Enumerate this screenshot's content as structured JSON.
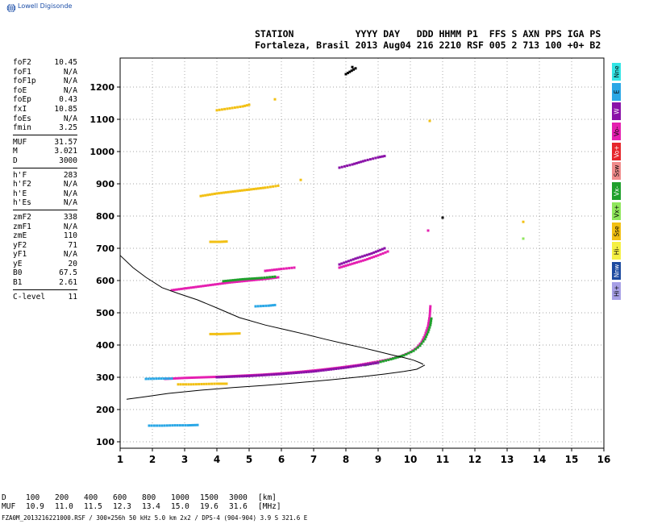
{
  "logo": {
    "text": "Lowell Digisonde"
  },
  "header": {
    "line1": "STATION           YYYY DAY   DDD HHMM P1  FFS S AXN PPS IGA PS",
    "line2": "Fortaleza, Brasil 2013 Aug04 216 2210 RSF 005 2 713 100 +0+ B2"
  },
  "params_group1": [
    {
      "name": "foF2",
      "value": "10.45"
    },
    {
      "name": "foF1",
      "value": "N/A"
    },
    {
      "name": "foF1p",
      "value": "N/A"
    },
    {
      "name": "foE",
      "value": "N/A"
    },
    {
      "name": "foEp",
      "value": "0.43"
    },
    {
      "name": "fxI",
      "value": "10.85"
    },
    {
      "name": "foEs",
      "value": "N/A"
    },
    {
      "name": "fmin",
      "value": "3.25"
    }
  ],
  "params_group2": [
    {
      "name": "MUF",
      "value": "31.57"
    },
    {
      "name": "M",
      "value": "3.021"
    },
    {
      "name": "D",
      "value": "3000"
    }
  ],
  "params_group3": [
    {
      "name": "h'F",
      "value": "283"
    },
    {
      "name": "h'F2",
      "value": "N/A"
    },
    {
      "name": "h'E",
      "value": "N/A"
    },
    {
      "name": "h'Es",
      "value": "N/A"
    }
  ],
  "params_group4": [
    {
      "name": "zmF2",
      "value": "338"
    },
    {
      "name": "zmF1",
      "value": "N/A"
    },
    {
      "name": "zmE",
      "value": "110"
    },
    {
      "name": "yF2",
      "value": "71"
    },
    {
      "name": "yF1",
      "value": "N/A"
    },
    {
      "name": "yE",
      "value": "20"
    },
    {
      "name": "B0",
      "value": "67.5"
    },
    {
      "name": "B1",
      "value": "2.61"
    }
  ],
  "params_group5": [
    {
      "name": "C-level",
      "value": "11"
    }
  ],
  "legend": [
    {
      "label": "Nne",
      "color": "#33e5e5"
    },
    {
      "label": "E",
      "color": "#2aa7e6"
    },
    {
      "label": "W",
      "color": "#8a12a8"
    },
    {
      "label": "Vo-",
      "color": "#e51fb0"
    },
    {
      "label": "Vo+",
      "color": "#e6262b"
    },
    {
      "label": "Ssw",
      "color": "#f08b8b"
    },
    {
      "label": "Vx-",
      "color": "#1fa02c"
    },
    {
      "label": "Vx+",
      "color": "#8fe65c"
    },
    {
      "label": "Sse",
      "color": "#f2c014"
    },
    {
      "label": "Hi-",
      "color": "#f5f044"
    },
    {
      "label": "Nnw",
      "color": "#1c4aa0"
    },
    {
      "label": "Hi+",
      "color": "#a7a0e6"
    }
  ],
  "muf_table": {
    "row1": [
      "D",
      "100",
      "200",
      "400",
      "600",
      "800",
      "1000",
      "1500",
      "3000",
      "[km]"
    ],
    "row2": [
      "MUF",
      "10.9",
      "11.0",
      "11.5",
      "12.3",
      "13.4",
      "15.0",
      "19.6",
      "31.6",
      "[MHz]"
    ]
  },
  "footer": "FZA0M_2013216221000.RSF / 300×256h 50 kHz 5.0 km 2x2 / DPS-4 (904-904)  3.9 S 321.6 E",
  "chart_data": {
    "type": "scatter",
    "title": "",
    "xlabel": "",
    "ylabel": "",
    "xlim": [
      1,
      16
    ],
    "ylim": [
      80,
      1290
    ],
    "x_ticks": [
      1,
      2,
      3,
      4,
      5,
      6,
      7,
      8,
      9,
      10,
      11,
      12,
      13,
      14,
      15,
      16
    ],
    "y_ticks": [
      100,
      200,
      300,
      400,
      500,
      600,
      700,
      800,
      900,
      1000,
      1100,
      1200
    ],
    "grid": true,
    "profile_line": [
      [
        10.4,
        340
      ],
      [
        10.3,
        345
      ],
      [
        10.1,
        353
      ],
      [
        9.8,
        361
      ],
      [
        9.4,
        370
      ],
      [
        9.0,
        380
      ],
      [
        8.5,
        392
      ],
      [
        8.0,
        403
      ],
      [
        7.4,
        417
      ],
      [
        6.8,
        432
      ],
      [
        6.2,
        446
      ],
      [
        5.5,
        462
      ],
      [
        4.7,
        485
      ],
      [
        4.0,
        515
      ],
      [
        3.4,
        540
      ],
      [
        2.8,
        560
      ],
      [
        2.3,
        578
      ],
      [
        1.8,
        610
      ],
      [
        1.4,
        640
      ],
      [
        1.0,
        678
      ]
    ],
    "true_height_line": [
      [
        1.2,
        232
      ],
      [
        1.8,
        240
      ],
      [
        2.5,
        250
      ],
      [
        3.5,
        260
      ],
      [
        4.5,
        268
      ],
      [
        5.5,
        275
      ],
      [
        6.5,
        283
      ],
      [
        7.5,
        292
      ],
      [
        8.5,
        302
      ],
      [
        9.2,
        310
      ],
      [
        9.8,
        318
      ],
      [
        10.2,
        325
      ],
      [
        10.45,
        338
      ]
    ],
    "echo_traces": [
      {
        "series": "O",
        "color": "#e51fb0",
        "points": [
          [
            2.4,
            295
          ],
          [
            3.0,
            298
          ],
          [
            3.6,
            300
          ],
          [
            4.2,
            302
          ],
          [
            4.8,
            305
          ],
          [
            5.4,
            308
          ],
          [
            6.0,
            312
          ],
          [
            6.6,
            317
          ],
          [
            7.2,
            323
          ],
          [
            7.8,
            330
          ],
          [
            8.4,
            338
          ],
          [
            8.9,
            347
          ],
          [
            9.3,
            355
          ],
          [
            9.7,
            365
          ],
          [
            10.0,
            378
          ],
          [
            10.2,
            392
          ],
          [
            10.35,
            410
          ],
          [
            10.45,
            430
          ],
          [
            10.55,
            460
          ],
          [
            10.6,
            490
          ],
          [
            10.62,
            520
          ]
        ]
      },
      {
        "series": "X",
        "color": "#1fa02c",
        "points": [
          [
            8.6,
            338
          ],
          [
            9.0,
            346
          ],
          [
            9.4,
            356
          ],
          [
            9.8,
            368
          ],
          [
            10.1,
            382
          ],
          [
            10.3,
            398
          ],
          [
            10.45,
            418
          ],
          [
            10.55,
            440
          ],
          [
            10.62,
            462
          ],
          [
            10.65,
            482
          ]
        ]
      },
      {
        "series": "W",
        "color": "#8a12a8",
        "points": [
          [
            4.0,
            300
          ],
          [
            5.0,
            304
          ],
          [
            6.0,
            310
          ],
          [
            7.0,
            318
          ],
          [
            8.0,
            330
          ],
          [
            9.0,
            345
          ]
        ]
      },
      {
        "series": "E",
        "color": "#2aa7e6",
        "points": [
          [
            1.8,
            295
          ],
          [
            2.2,
            296
          ],
          [
            2.6,
            296
          ]
        ]
      },
      {
        "series": "E",
        "color": "#2aa7e6",
        "points": [
          [
            1.9,
            150
          ],
          [
            2.3,
            150
          ],
          [
            2.7,
            151
          ],
          [
            3.1,
            151
          ],
          [
            3.4,
            152
          ]
        ]
      },
      {
        "series": "Sse",
        "color": "#f2c014",
        "points": [
          [
            2.8,
            278
          ],
          [
            3.2,
            278
          ],
          [
            3.6,
            279
          ],
          [
            4.0,
            280
          ],
          [
            4.3,
            280
          ]
        ]
      },
      {
        "series": "Sse",
        "color": "#f2c014",
        "points": [
          [
            3.8,
            434
          ],
          [
            4.1,
            434
          ],
          [
            4.4,
            435
          ],
          [
            4.7,
            436
          ]
        ]
      },
      {
        "series": "O",
        "color": "#e51fb0",
        "points": [
          [
            2.6,
            570
          ],
          [
            3.2,
            578
          ],
          [
            3.8,
            586
          ],
          [
            4.4,
            594
          ],
          [
            5.0,
            600
          ],
          [
            5.6,
            606
          ],
          [
            5.9,
            610
          ]
        ]
      },
      {
        "series": "X",
        "color": "#1fa02c",
        "points": [
          [
            4.2,
            598
          ],
          [
            4.8,
            604
          ],
          [
            5.4,
            608
          ],
          [
            5.8,
            612
          ]
        ]
      },
      {
        "series": "Vo-",
        "color": "#e51fb0",
        "points": [
          [
            5.5,
            630
          ],
          [
            6.0,
            636
          ],
          [
            6.4,
            640
          ]
        ]
      },
      {
        "series": "Sse",
        "color": "#f2c014",
        "points": [
          [
            3.8,
            720
          ],
          [
            4.1,
            720
          ],
          [
            4.3,
            721
          ]
        ]
      },
      {
        "series": "O",
        "color": "#e51fb0",
        "points": [
          [
            7.8,
            640
          ],
          [
            8.2,
            652
          ],
          [
            8.6,
            664
          ],
          [
            9.0,
            678
          ],
          [
            9.3,
            690
          ]
        ]
      },
      {
        "series": "W",
        "color": "#8a12a8",
        "points": [
          [
            7.8,
            650
          ],
          [
            8.3,
            668
          ],
          [
            8.8,
            684
          ],
          [
            9.2,
            700
          ]
        ]
      },
      {
        "series": "Sse",
        "color": "#f2c014",
        "points": [
          [
            3.5,
            862
          ],
          [
            4.0,
            870
          ],
          [
            4.5,
            876
          ],
          [
            5.0,
            882
          ],
          [
            5.5,
            888
          ],
          [
            5.9,
            894
          ]
        ]
      },
      {
        "series": "W",
        "color": "#8a12a8",
        "points": [
          [
            7.8,
            950
          ],
          [
            8.2,
            960
          ],
          [
            8.6,
            972
          ],
          [
            9.0,
            982
          ],
          [
            9.2,
            986
          ]
        ]
      },
      {
        "series": "Sse",
        "color": "#f2c014",
        "points": [
          [
            4.0,
            1128
          ],
          [
            4.4,
            1134
          ],
          [
            4.8,
            1140
          ],
          [
            5.0,
            1145
          ]
        ]
      },
      {
        "series": "Sse",
        "color": "#f2c014",
        "points": [
          [
            5.8,
            1162
          ]
        ]
      },
      {
        "series": "Sse",
        "color": "#f2c014",
        "points": [
          [
            6.6,
            912
          ]
        ]
      },
      {
        "series": "Sse",
        "color": "#f2c014",
        "points": [
          [
            10.6,
            1095
          ]
        ]
      },
      {
        "series": "Sse",
        "color": "#f2c014",
        "points": [
          [
            13.5,
            782
          ]
        ]
      },
      {
        "series": "Vx+",
        "color": "#8fe65c",
        "points": [
          [
            13.5,
            730
          ]
        ]
      },
      {
        "series": "O",
        "color": "#e51fb0",
        "points": [
          [
            10.55,
            755
          ]
        ]
      },
      {
        "series": "E",
        "color": "#2aa7e6",
        "points": [
          [
            5.2,
            520
          ],
          [
            5.6,
            522
          ],
          [
            5.8,
            524
          ]
        ]
      },
      {
        "series": "Hi-",
        "color": "#000000",
        "points": [
          [
            8.2,
            1262
          ],
          [
            8.3,
            1258
          ],
          [
            8.0,
            1240
          ]
        ]
      },
      {
        "series": "Hi-",
        "color": "#000000",
        "points": [
          [
            11.0,
            795
          ]
        ]
      }
    ]
  }
}
